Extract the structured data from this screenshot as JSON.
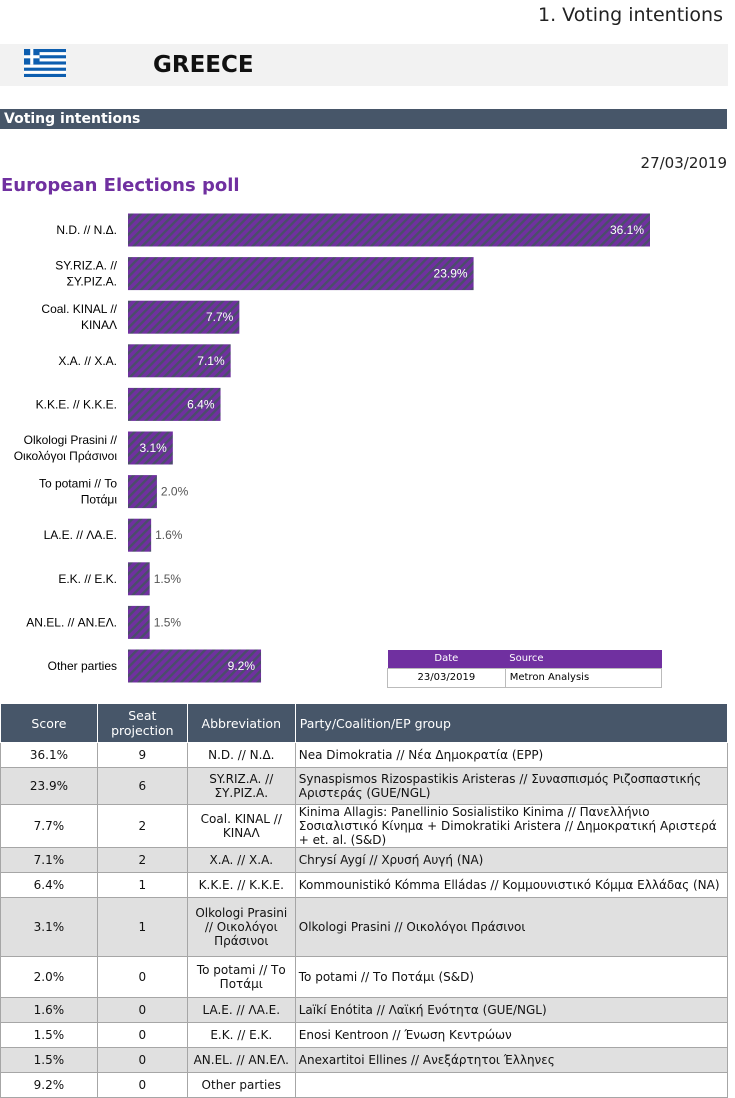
{
  "header": {
    "section_number_title": "1. Voting intentions",
    "country": "GREECE"
  },
  "section_title": "Voting intentions",
  "poll": {
    "date": "27/03/2019",
    "title": "European Elections poll"
  },
  "colors": {
    "bar": "#7030a0",
    "bar_stripe": "#4a4e6a",
    "band": "#475669",
    "accent": "#7030a0"
  },
  "chart_data": {
    "type": "bar",
    "orientation": "horizontal",
    "title": "European Elections poll",
    "categories": [
      [
        "N.D. // Ν.Δ."
      ],
      [
        "SY.RIZ.A. //",
        "ΣΥ.ΡΙΖ.Α."
      ],
      [
        "Coal. KINAL //",
        "ΚΙΝΑΛ"
      ],
      [
        "X.A. // Χ.Α."
      ],
      [
        "K.K.E. // Κ.Κ.Ε."
      ],
      [
        "Olkologi Prasini //",
        "Οικολόγοι Πράσινοι"
      ],
      [
        "To potami // Το",
        "Ποτάμι"
      ],
      [
        "LA.E. // ΛΑ.Ε."
      ],
      [
        "E.K. // Ε.Κ."
      ],
      [
        "AN.EL. // ΑΝ.ΕΛ."
      ],
      [
        "Other parties"
      ]
    ],
    "values": [
      36.1,
      23.9,
      7.7,
      7.1,
      6.4,
      3.1,
      2.0,
      1.6,
      1.5,
      1.5,
      9.2
    ],
    "value_labels": [
      "36.1%",
      "23.9%",
      "7.7%",
      "7.1%",
      "6.4%",
      "3.1%",
      "2.0%",
      "1.6%",
      "1.5%",
      "1.5%",
      "9.2%"
    ],
    "xlim": [
      0,
      38
    ]
  },
  "source": {
    "headers": [
      "Date",
      "Source"
    ],
    "rows": [
      [
        "23/03/2019",
        "Metron Analysis"
      ]
    ]
  },
  "table": {
    "headers": [
      "Score",
      "Seat projection",
      "Abbreviation",
      "Party/Coalition/EP group"
    ],
    "rows": [
      [
        "36.1%",
        "9",
        "N.D. // Ν.Δ.",
        "Nea Dimokratia // Νέα Δημοκρατία (EPP)"
      ],
      [
        "23.9%",
        "6",
        "SY.RIZ.A. // ΣΥ.ΡΙΖ.Α.",
        "Synaspismos Rizospastikis Aristeras // Συνασπισμός Ριζοσπαστικής Αριστεράς (GUE/NGL)"
      ],
      [
        "7.7%",
        "2",
        "Coal. KINAL // ΚΙΝΑΛ",
        "Kinima Allagis: Panellinio Sosialistiko Kinima // Πανελλήνιο Σοσιαλιστικό Κίνημα + Dimokratiki Aristera // Δημοκρατική Αριστερά + et. al. (S&D)"
      ],
      [
        "7.1%",
        "2",
        "X.A. // Χ.Α.",
        "Chrysí Aygí // Χρυσή Αυγή (NA)"
      ],
      [
        "6.4%",
        "1",
        "K.K.E. // Κ.Κ.Ε.",
        "Kommounistikó Kómma Elládas // Κομμουνιστικό Κόμμα Ελλάδας (NA)"
      ],
      [
        "3.1%",
        "1",
        "Olkologi Prasini // Οικολόγοι Πράσινοι",
        "Olkologi Prasini // Οικολόγοι Πράσινοι"
      ],
      [
        "2.0%",
        "0",
        "To potami // Το Ποτάμι",
        "To potami // Το Ποτάμι (S&D)"
      ],
      [
        "1.6%",
        "0",
        "LA.E. // ΛΑ.Ε.",
        "Laïkí Enótita // Λαϊκή Ενότητα (GUE/NGL)"
      ],
      [
        "1.5%",
        "0",
        "E.K. // Ε.Κ.",
        "Enosi Kentroon // Ένωση Κεντρώων"
      ],
      [
        "1.5%",
        "0",
        "AN.EL. // ΑΝ.ΕΛ.",
        "Anexartitoi Ellines // Ανεξάρτητοι Έλληνες"
      ],
      [
        "9.2%",
        "0",
        "Other parties",
        ""
      ]
    ]
  }
}
